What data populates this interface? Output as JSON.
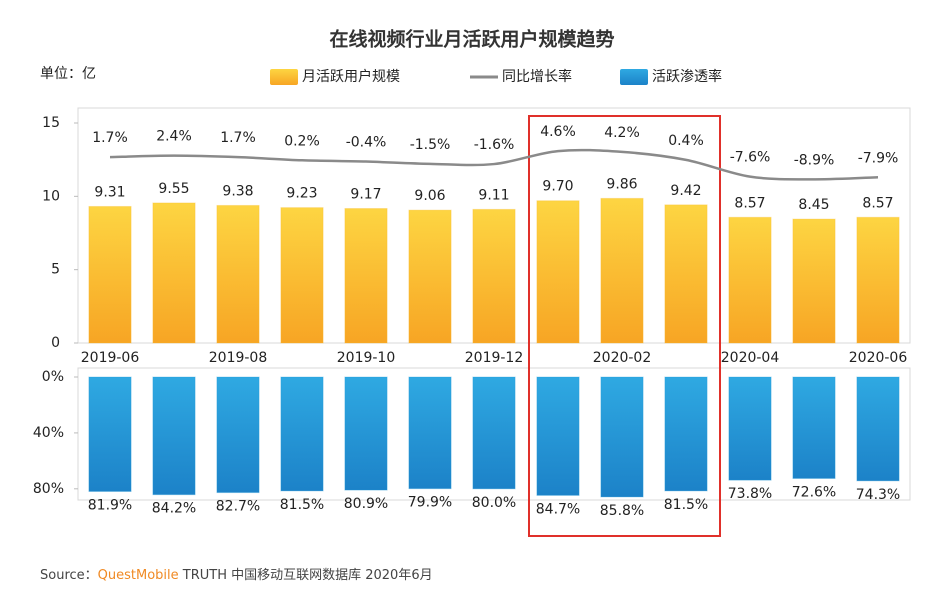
{
  "chart_data": {
    "type": "bar",
    "title": "在线视频行业月活跃用户规模趋势",
    "unit": "单位：亿",
    "categories": [
      "2019-06",
      null,
      "2019-08",
      null,
      "2019-10",
      null,
      "2019-12",
      null,
      "2020-02",
      null,
      "2020-04",
      null,
      "2020-06"
    ],
    "ylim": [
      0,
      15
    ],
    "yticks": [
      0,
      5,
      10,
      15
    ],
    "y2lim": [
      0,
      88
    ],
    "y2ticks": [
      {
        "value": 0,
        "label": "0%"
      },
      {
        "value": 40,
        "label": "40%"
      },
      {
        "value": 80,
        "label": "80%"
      }
    ],
    "y2_inverted": true,
    "y3lim": [
      -87,
      18
    ],
    "series": [
      {
        "name": "月活跃用户规模",
        "type": "bar",
        "color": "#f9b92c",
        "values": [
          9.31,
          9.55,
          9.38,
          9.23,
          9.17,
          9.06,
          9.11,
          9.7,
          9.86,
          9.42,
          8.57,
          8.45,
          8.57
        ],
        "value_labels": [
          "9.31",
          "9.55",
          "9.38",
          "9.23",
          "9.17",
          "9.06",
          "9.11",
          "9.70",
          "9.86",
          "9.42",
          "8.57",
          "8.45",
          "8.57"
        ]
      },
      {
        "name": "同比增长率",
        "type": "line",
        "axis": "y3",
        "color": "#8a8a8a",
        "values": [
          1.7,
          2.4,
          1.7,
          0.2,
          -0.4,
          -1.5,
          -1.6,
          4.6,
          4.2,
          0.4,
          -7.6,
          -8.9,
          -7.9
        ],
        "value_labels": [
          "1.7%",
          "2.4%",
          "1.7%",
          "0.2%",
          "-0.4%",
          "-1.5%",
          "-1.6%",
          "4.6%",
          "4.2%",
          "0.4%",
          "-7.6%",
          "-8.9%",
          "-7.9%"
        ]
      },
      {
        "name": "活跃渗透率",
        "type": "bar",
        "axis": "y2",
        "color": "#2197d6",
        "values": [
          81.9,
          84.2,
          82.7,
          81.5,
          80.9,
          79.9,
          80.0,
          84.7,
          85.8,
          81.5,
          73.8,
          72.6,
          74.3
        ],
        "value_labels": [
          "81.9%",
          "84.2%",
          "82.7%",
          "81.5%",
          "80.9%",
          "79.9%",
          "80.0%",
          "84.7%",
          "85.8%",
          "81.5%",
          "73.8%",
          "72.6%",
          "74.3%"
        ]
      }
    ],
    "source": {
      "prefix": "Source：",
      "brand": "QuestMobile",
      "rest": " TRUTH 中国移动互联网数据库 2020年6月"
    }
  }
}
